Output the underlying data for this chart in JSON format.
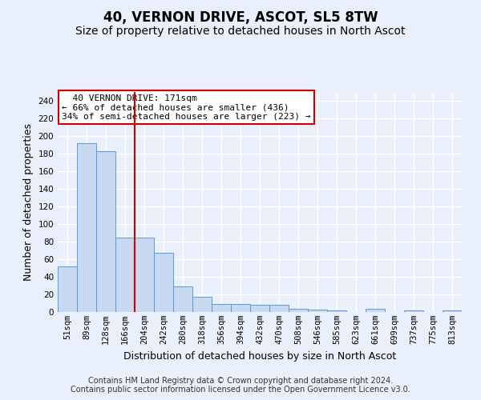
{
  "title": "40, VERNON DRIVE, ASCOT, SL5 8TW",
  "subtitle": "Size of property relative to detached houses in North Ascot",
  "xlabel": "Distribution of detached houses by size in North Ascot",
  "ylabel": "Number of detached properties",
  "categories": [
    "51sqm",
    "89sqm",
    "128sqm",
    "166sqm",
    "204sqm",
    "242sqm",
    "280sqm",
    "318sqm",
    "356sqm",
    "394sqm",
    "432sqm",
    "470sqm",
    "508sqm",
    "546sqm",
    "585sqm",
    "623sqm",
    "661sqm",
    "699sqm",
    "737sqm",
    "775sqm",
    "813sqm"
  ],
  "values": [
    52,
    192,
    183,
    85,
    85,
    67,
    29,
    17,
    9,
    9,
    8,
    8,
    4,
    3,
    2,
    0,
    4,
    0,
    2,
    0,
    2
  ],
  "bar_color": "#c6d9f0",
  "bar_edge_color": "#5b9bd5",
  "vline_x": 3.5,
  "vline_color": "#cc0000",
  "annotation_text": "  40 VERNON DRIVE: 171sqm  \n← 66% of detached houses are smaller (436)\n34% of semi-detached houses are larger (223) →",
  "annotation_box_facecolor": "#ffffff",
  "annotation_box_edgecolor": "#cc0000",
  "footer_text": "Contains HM Land Registry data © Crown copyright and database right 2024.\nContains public sector information licensed under the Open Government Licence v3.0.",
  "ylim": [
    0,
    250
  ],
  "yticks": [
    0,
    20,
    40,
    60,
    80,
    100,
    120,
    140,
    160,
    180,
    200,
    220,
    240
  ],
  "bg_color": "#eaf0fb",
  "grid_color": "#ffffff",
  "title_fontsize": 12,
  "subtitle_fontsize": 10,
  "tick_fontsize": 7.5,
  "ylabel_fontsize": 9,
  "xlabel_fontsize": 9,
  "footer_fontsize": 7,
  "annotation_fontsize": 8
}
